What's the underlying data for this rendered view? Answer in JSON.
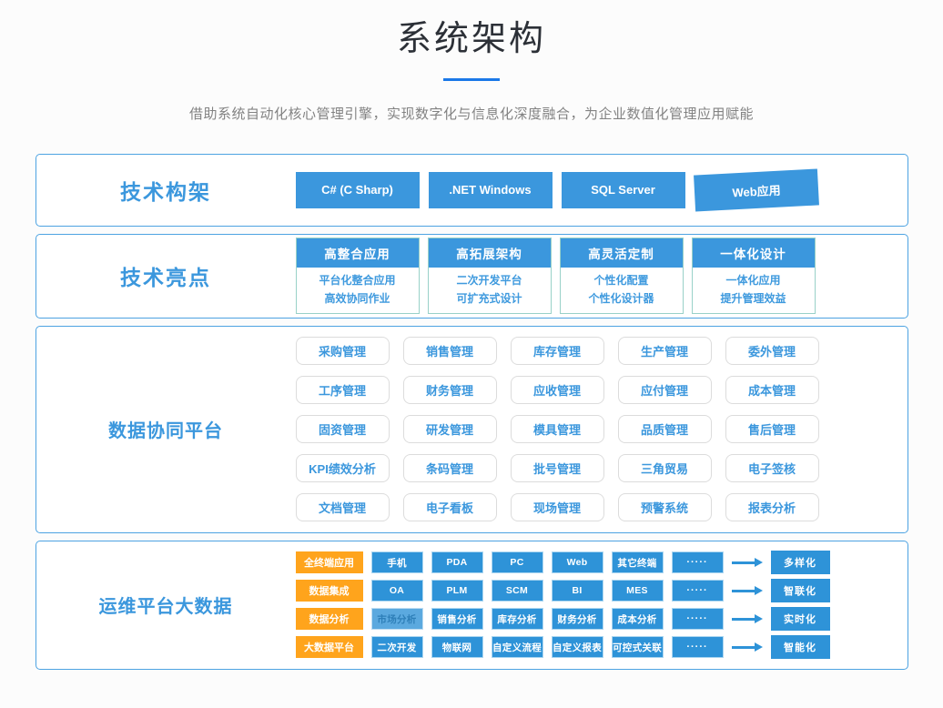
{
  "header": {
    "title": "系统架构",
    "subtitle": "借助系统自动化核心管理引擎，实现数字化与信息化深度融合，为企业数值化管理应用赋能"
  },
  "colors": {
    "primary_blue": "#3b97dd",
    "node_blue": "#2e93d8",
    "divider_blue": "#1a78e8",
    "panel_border_blue": "#4da3e2",
    "card_border_teal": "#99d1c8",
    "orange": "#ffa41c"
  },
  "tech_stack": {
    "label": "技术构架",
    "items": [
      "C#  (C Sharp)",
      ".NET Windows",
      "SQL Server",
      "Web应用"
    ]
  },
  "highlights": {
    "label": "技术亮点",
    "cards": [
      {
        "title": "高整合应用",
        "line1": "平台化整合应用",
        "line2": "高效协同作业"
      },
      {
        "title": "高拓展架构",
        "line1": "二次开发平台",
        "line2": "可扩充式设计"
      },
      {
        "title": "高灵活定制",
        "line1": "个性化配置",
        "line2": "个性化设计器"
      },
      {
        "title": "一体化设计",
        "line1": "一体化应用",
        "line2": "提升管理效益"
      }
    ]
  },
  "platform": {
    "label": "数据协同平台",
    "modules": [
      "采购管理",
      "销售管理",
      "库存管理",
      "生产管理",
      "委外管理",
      "工序管理",
      "财务管理",
      "应收管理",
      "应付管理",
      "成本管理",
      "固资管理",
      "研发管理",
      "模具管理",
      "品质管理",
      "售后管理",
      "KPI绩效分析",
      "条码管理",
      "批号管理",
      "三角贸易",
      "电子签核",
      "文档管理",
      "电子看板",
      "现场管理",
      "预警系统",
      "报表分析"
    ]
  },
  "bigdata": {
    "label": "运维平台大数据",
    "rows": [
      {
        "category": "全终端应用",
        "items": [
          "手机",
          "PDA",
          "PC",
          "Web",
          "其它终端",
          "·····"
        ],
        "result": "多样化"
      },
      {
        "category": "数据集成",
        "items": [
          "OA",
          "PLM",
          "SCM",
          "BI",
          "MES",
          "·····"
        ],
        "result": "智联化"
      },
      {
        "category": "数据分析",
        "items": [
          "市场分析",
          "销售分析",
          "库存分析",
          "财务分析",
          "成本分析",
          "·····"
        ],
        "result": "实时化"
      },
      {
        "category": "大数据平台",
        "items": [
          "二次开发",
          "物联网",
          "自定义流程",
          "自定义报表",
          "可控式关联",
          "·····"
        ],
        "result": "智能化"
      }
    ]
  }
}
